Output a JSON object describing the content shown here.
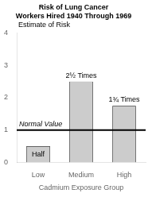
{
  "chart_data": {
    "type": "bar",
    "title": "Risk of Lung Cancer\nWorkers Hired 1940 Through 1969",
    "xlabel": "Cadmium Exposure Group",
    "ylabel": "Estimate of Risk",
    "categories": [
      "Low",
      "Medium",
      "High"
    ],
    "values": [
      0.5,
      2.5,
      1.75
    ],
    "color": "#cccccc",
    "ylim": [
      0,
      4
    ],
    "yticks": [
      0,
      1,
      2,
      3,
      4
    ],
    "grid": false,
    "reference_line": {
      "value": 1.0,
      "label": "Normal Value"
    },
    "annotations": [
      {
        "category": "Low",
        "text": "Half"
      },
      {
        "category": "Medium",
        "text": "2½ Times"
      },
      {
        "category": "High",
        "text": "1¾ Times"
      }
    ]
  }
}
